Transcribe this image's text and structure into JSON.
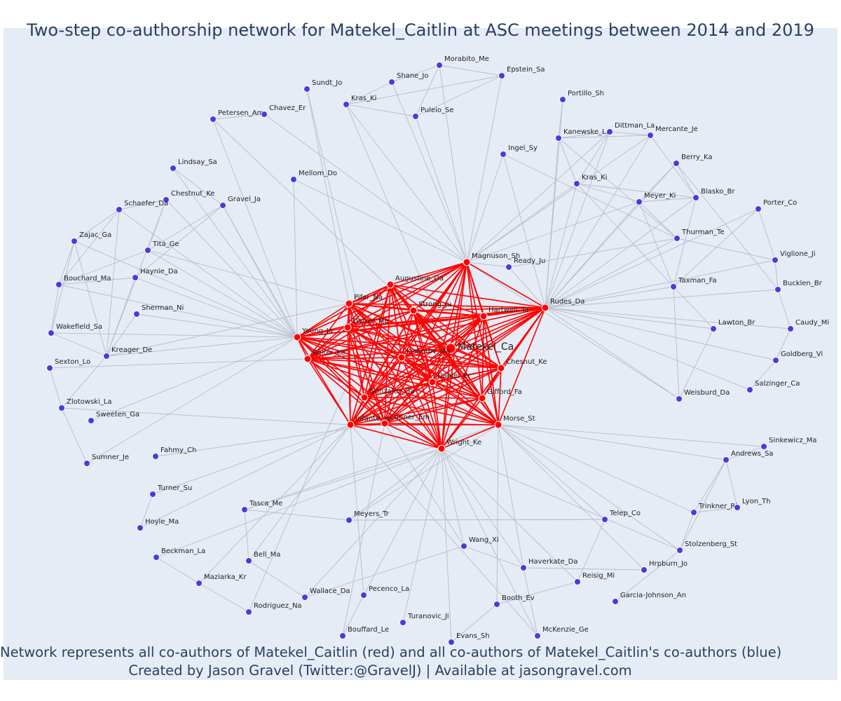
{
  "title": "Two-step co-authorship network for Matekel_Caitlin at ASC meetings between 2014 and 2019",
  "caption": {
    "line1": "Network represents all co-authors of Matekel_Caitlin (red) and all co-authors of Matekel_Caitlin's co-authors (blue)",
    "line2": "Created by Jason Gravel (Twitter:@GravelJ) | Available at jasongravel.com"
  },
  "colors": {
    "red": "#ff0000",
    "blue": "#4040e0",
    "edge": "#b8bcc8",
    "background": "#e5ecf6"
  },
  "center": "Matekel_Ca",
  "red_nodes": [
    "Matekel_Ca",
    "Magnuson_Sh",
    "Augustine_Da",
    "Pifer_Na",
    "Strong_Ju",
    "Hartwell_Ta",
    "Rudes_Da",
    "Young_Ja",
    "Dorrer_Me",
    "Reiter_Ke",
    "Kishorov_Ma",
    "Chesnut_Ke",
    "Daniel_Er",
    "Gonzalez_Ga",
    "Gifford_Fa",
    "Infante_Ja",
    "Conner_Em",
    "Morse_St",
    "Wright_Ke"
  ],
  "blue_nodes": [
    "Morabito_Me",
    "Shane_Jo",
    "Epstein_Sa",
    "Kras_Ki",
    "Puleio_Se",
    "Sundt_Jo",
    "Petersen_Am",
    "Chavez_Er",
    "Portillo_Sh",
    "Dittman_La",
    "Mercante_Je",
    "Kanewske_L.",
    "Ingel_Sy",
    "Berry_Ka",
    "Kras_Ki",
    "Blasko_Br",
    "Meyer_Ki",
    "Porter_Co",
    "Lindsay_Sa",
    "Mellom_Do",
    "Chestnut_Ke",
    "Gravel_Ja",
    "Schaefer_Da",
    "Zajac_Ga",
    "Tita_Ge",
    "Haynie_Da",
    "Bouchard_Ma",
    "Sherman_Ni",
    "Wakefield_Sa",
    "Kreager_De",
    "Sexton_Lo",
    "Zlotowski_La",
    "Sweeten_Ga",
    "Sumner_Je",
    "Fahmy_Ch",
    "Turner_Su",
    "Hoyle_Ma",
    "Beckman_La",
    "Maziarka_Kr",
    "Rodriguez_Na",
    "Tasca_Me",
    "Bell_Ma",
    "Wallace_Da",
    "Meyers_Tr",
    "Pecenco_La",
    "Bouffard_Le",
    "Turanovic_Ji",
    "Evans_Sh",
    "Booth_Ev",
    "McKenzie_Ge",
    "Wang_Xi",
    "Haverkate_Da",
    "Reisig_Mi",
    "Hrpburn_Jo",
    "Garcia-Johnson_An",
    "Telep_Co",
    "Stolzenberg_St",
    "Trinkner_Ri",
    "Lyon_Th",
    "Andrews_Sa",
    "Sinkewicz_Ma",
    "Weisburd_Da",
    "Salzinger_Ca",
    "Goldberg_Vi",
    "Caudy_Mi",
    "Lawton_Br",
    "Bucklen_Br",
    "Viglione_Ji",
    "Taxman_Fa",
    "Thurman_Te",
    "Ready_Ju"
  ]
}
